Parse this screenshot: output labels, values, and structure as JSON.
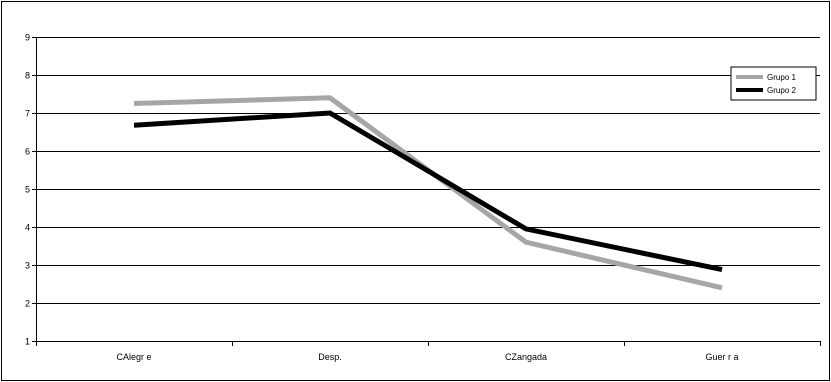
{
  "chart_data": {
    "type": "line",
    "categories": [
      "CAlegre",
      "Desp.",
      "CZangada",
      "Guerra"
    ],
    "category_labels": [
      "CAlegr e",
      "Desp.",
      "CZangada",
      "Guer r a"
    ],
    "ylim": [
      1,
      9
    ],
    "yticks": [
      "1",
      "2",
      "3",
      "4",
      "5",
      "6",
      "7",
      "8",
      "9"
    ],
    "grid": true,
    "legend_position": "top-right",
    "series": [
      {
        "name": "Grupo 1",
        "label": "Grupo 1",
        "color": "#a6a6a6",
        "values": [
          7.25,
          7.4,
          3.6,
          2.4
        ]
      },
      {
        "name": "Grupo 2",
        "label": "Grupo 2",
        "color": "#000000",
        "values": [
          6.68,
          7.0,
          3.95,
          2.88
        ]
      }
    ]
  }
}
